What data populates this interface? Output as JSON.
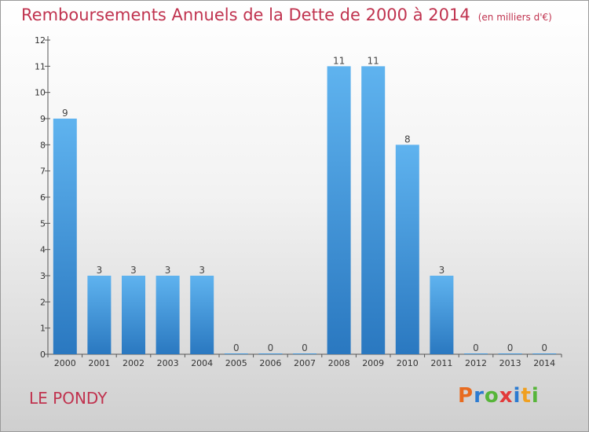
{
  "chart_data": {
    "type": "bar",
    "title": "Remboursements Annuels de la Dette de 2000 à 2014",
    "subtitle": "(en milliers d'€)",
    "categories": [
      "2000",
      "2001",
      "2002",
      "2003",
      "2004",
      "2005",
      "2006",
      "2007",
      "2008",
      "2009",
      "2010",
      "2011",
      "2012",
      "2013",
      "2014"
    ],
    "values": [
      9,
      3,
      3,
      3,
      3,
      0,
      0,
      0,
      11,
      11,
      8,
      3,
      0,
      0,
      0
    ],
    "ylim": [
      0,
      12
    ],
    "yticks": [
      0,
      1,
      2,
      3,
      4,
      5,
      6,
      7,
      8,
      9,
      10,
      11,
      12
    ],
    "grid": false,
    "bar_color": "#3f96dc"
  },
  "footer": {
    "commune": "LE PONDY",
    "brand_letters": [
      "P",
      "r",
      "o",
      "x",
      "i",
      "t",
      "i"
    ],
    "brand_colors": [
      "#e86b1f",
      "#2c7bd1",
      "#57b53a",
      "#e23a3a",
      "#2c7bd1",
      "#f0a020",
      "#57b53a"
    ]
  }
}
